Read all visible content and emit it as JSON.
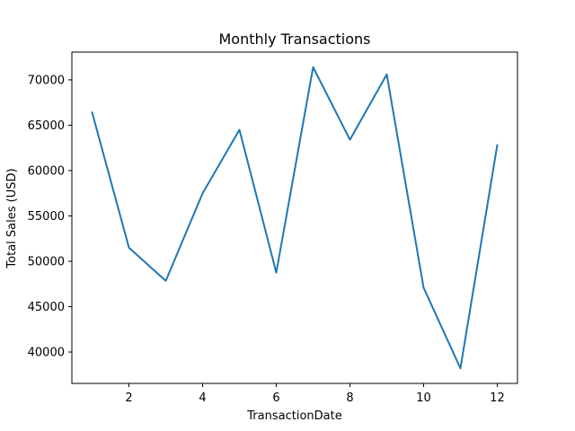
{
  "chart_data": {
    "type": "line",
    "title": "Monthly Transactions",
    "xlabel": "TransactionDate",
    "ylabel": "Total Sales (USD)",
    "x": [
      1,
      2,
      3,
      4,
      5,
      6,
      7,
      8,
      9,
      10,
      11,
      12
    ],
    "series": [
      {
        "values": [
          66400,
          51500,
          47850,
          57500,
          64500,
          48750,
          71400,
          63400,
          70600,
          47100,
          38200,
          62800
        ],
        "color": "#1f77b4"
      }
    ],
    "xlim": [
      0.45,
      12.55
    ],
    "ylim": [
      36540,
      73060
    ],
    "xticks": [
      2,
      4,
      6,
      8,
      10,
      12
    ],
    "yticks": [
      40000,
      45000,
      50000,
      55000,
      60000,
      65000,
      70000
    ],
    "grid": false,
    "legend": "none"
  }
}
